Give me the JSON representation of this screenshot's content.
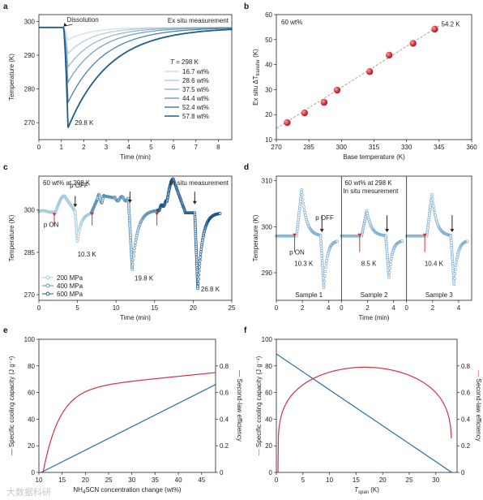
{
  "panels": [
    {
      "id": "a",
      "label": "a"
    },
    {
      "id": "b",
      "label": "b"
    },
    {
      "id": "c",
      "label": "c"
    },
    {
      "id": "d",
      "label": "d"
    },
    {
      "id": "e",
      "label": "e"
    },
    {
      "id": "f",
      "label": "f"
    }
  ],
  "watermark": "大数据科研",
  "chart_data": [
    {
      "id": "a",
      "type": "line",
      "title": "",
      "xlabel": "Time (min)",
      "ylabel": "Temperature (K)",
      "xlim": [
        0,
        8.6
      ],
      "ylim": [
        265,
        302
      ],
      "xticks": [
        0,
        1,
        2,
        3,
        4,
        5,
        6,
        7,
        8
      ],
      "yticks": [
        270,
        280,
        290,
        300
      ],
      "annotations": [
        {
          "text": "Ex situ measurement"
        },
        {
          "text": "Dissolution"
        },
        {
          "text": "29.8 K"
        }
      ],
      "legend_title": "T = 298 K",
      "legend_position": "right",
      "baseline": 298.2,
      "dissolution_time": 1.1,
      "series": [
        {
          "name": "16.7 wt%",
          "min": 294.5,
          "t_min": 1.3,
          "tau": 1.0,
          "color": "#cfe0ea"
        },
        {
          "name": "28.6 wt%",
          "min": 290.5,
          "t_min": 1.3,
          "tau": 1.1,
          "color": "#b4cfde"
        },
        {
          "name": "37.5 wt%",
          "min": 286.5,
          "t_min": 1.3,
          "tau": 1.25,
          "color": "#98bbd0"
        },
        {
          "name": "44.4 wt%",
          "min": 282.0,
          "t_min": 1.3,
          "tau": 1.4,
          "color": "#76a3be"
        },
        {
          "name": "52.4 wt%",
          "min": 276.0,
          "t_min": 1.3,
          "tau": 1.6,
          "color": "#4f82a6"
        },
        {
          "name": "57.8 wt%",
          "min": 268.5,
          "t_min": 1.3,
          "tau": 1.85,
          "color": "#1f5d8e"
        }
      ]
    },
    {
      "id": "b",
      "type": "scatter",
      "title": "",
      "xlabel": "Base temperature (K)",
      "ylabel": "Ex situ ΔT",
      "ylabel_sub": "transfer",
      "ylabel_unit": "(K)",
      "xlim": [
        270,
        360
      ],
      "ylim": [
        10,
        60
      ],
      "xticks": [
        270,
        285,
        300,
        315,
        330,
        345,
        360
      ],
      "yticks": [
        10,
        20,
        30,
        40,
        50,
        60
      ],
      "annotations": [
        {
          "text": "60 wt%"
        },
        {
          "text": "54.2 K"
        }
      ],
      "x": [
        275,
        283,
        292,
        298,
        313,
        322,
        333,
        343
      ],
      "y": [
        16.8,
        20.7,
        24.9,
        29.8,
        37.2,
        43.8,
        48.5,
        54.2
      ],
      "fit": [
        [
          270,
          14.5
        ],
        [
          345,
          55.5
        ]
      ],
      "color": "#d9303b"
    },
    {
      "id": "c",
      "type": "line",
      "title": "",
      "xlabel": "Time (min)",
      "ylabel": "Temperature (K)",
      "xlim": [
        0,
        25
      ],
      "ylim": [
        268,
        312
      ],
      "xticks": [
        0,
        5,
        10,
        15,
        20,
        25
      ],
      "yticks": [
        270,
        285,
        300
      ],
      "annotations": [
        {
          "text": "60 wt% at 298 K"
        },
        {
          "text": "In situ measurement"
        },
        {
          "text": "p ON"
        },
        {
          "text": "p OFF"
        },
        {
          "text": "10.3 K"
        },
        {
          "text": "19.8 K"
        },
        {
          "text": "26.8 K"
        }
      ],
      "legend_position": "lower-left",
      "series": [
        {
          "name": "200 MPa",
          "color": "#a6c9dd"
        },
        {
          "name": "400 MPa",
          "color": "#5a91b8"
        },
        {
          "name": "600 MPa",
          "color": "#1c558b"
        }
      ]
    },
    {
      "id": "d",
      "type": "line",
      "title": "",
      "xlabel": "Time (min)",
      "ylabel": "Temperature (K)",
      "xlim": [
        0,
        5
      ],
      "ylim": [
        284,
        311
      ],
      "xticks": [
        0,
        2,
        4
      ],
      "yticks": [
        290,
        300,
        310
      ],
      "annotations": [
        {
          "text": "60 wt% at 298 K"
        },
        {
          "text": "In situ mesurement"
        },
        {
          "text": "p OFF"
        },
        {
          "text": "p ON"
        },
        {
          "text": "10.3 K"
        },
        {
          "text": "8.5 K"
        },
        {
          "text": "10.4 K"
        }
      ],
      "samples": [
        "Sample 1",
        "Sample 2",
        "Sample 3"
      ],
      "color": "#7fb0d2"
    },
    {
      "id": "e",
      "type": "line",
      "title": "",
      "xlabel": "NH4SCN concentration change (wt%)",
      "xlabel_parts": [
        "NH",
        "4",
        "SCN concentration change (wt%)"
      ],
      "ylabel": "— Specific cooling capacity (J g⁻¹)",
      "y2label": "— Second-law efficiency",
      "xlim": [
        10,
        48
      ],
      "ylim": [
        0,
        100
      ],
      "y2lim": [
        0,
        1.0
      ],
      "xticks": [
        10,
        15,
        20,
        25,
        30,
        35,
        40,
        45
      ],
      "yticks": [
        0,
        20,
        40,
        60,
        80,
        100
      ],
      "y2ticks": [
        0,
        0.2,
        0.4,
        0.6,
        0.8
      ],
      "series": [
        {
          "name": "Specific cooling capacity",
          "axis": "left",
          "color": "#2a6fa3",
          "x": [
            10.5,
            48
          ],
          "y": [
            0,
            66
          ]
        },
        {
          "name": "Second-law efficiency",
          "axis": "right",
          "color": "#d9303b"
        }
      ]
    },
    {
      "id": "f",
      "type": "line",
      "title": "",
      "xlabel": "T",
      "xlabel_sub": "span",
      "xlabel_unit": " (K)",
      "ylabel": "Specific cooling capacity (J g⁻¹)",
      "y2label": "Second-law efficiency",
      "xlim": [
        0,
        34
      ],
      "ylim": [
        0,
        100
      ],
      "y2lim": [
        0,
        1.0
      ],
      "xticks": [
        0,
        5,
        10,
        15,
        20,
        25,
        30
      ],
      "yticks": [
        0,
        20,
        40,
        60,
        80,
        100
      ],
      "y2ticks": [
        0,
        0.2,
        0.4,
        0.6,
        0.8
      ],
      "series": [
        {
          "name": "Specific cooling capacity",
          "axis": "left",
          "color": "#2a6fa3",
          "x": [
            0,
            33
          ],
          "y": [
            89,
            0
          ]
        },
        {
          "name": "Second-law efficiency",
          "axis": "right",
          "color": "#d9303b"
        }
      ]
    }
  ]
}
